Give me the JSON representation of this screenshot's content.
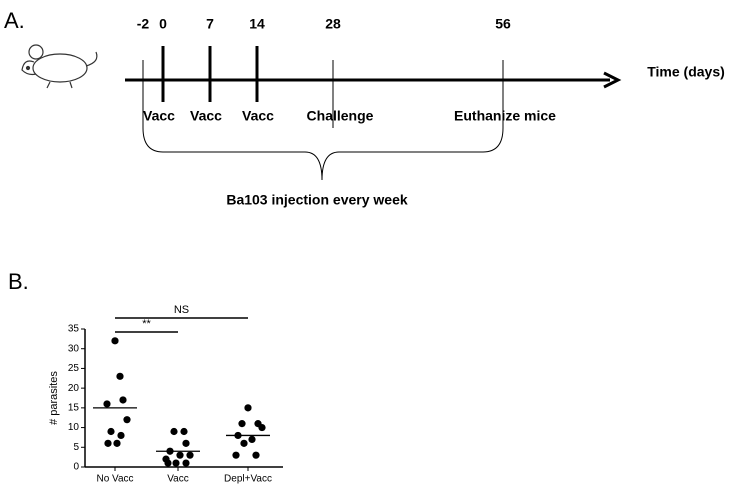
{
  "panel_a": {
    "label": "A.",
    "days": [
      -2,
      0,
      7,
      14,
      28,
      56
    ],
    "events": [
      "Vacc",
      "Vacc",
      "Vacc",
      "Challenge",
      "Euthanize mice"
    ],
    "axis_label": "Time (days)",
    "brace_label": "Ba103 injection every week"
  },
  "panel_b": {
    "label": "B."
  },
  "chart_data": {
    "type": "dot",
    "y_label": "# parasites",
    "categories": [
      "No Vacc",
      "Vacc",
      "Depl+Vacc"
    ],
    "values": [
      [
        32,
        23,
        17,
        16,
        12,
        9,
        8,
        6,
        6
      ],
      [
        9,
        9,
        6,
        4,
        3,
        3,
        2,
        1,
        1,
        1
      ],
      [
        15,
        11,
        11,
        10,
        8,
        7,
        6,
        3,
        3
      ]
    ],
    "center_lines": [
      15,
      4,
      8
    ],
    "annotations": [
      "**",
      "NS"
    ],
    "color": "#000000",
    "ylim": [
      0,
      35
    ],
    "yticks": [
      0,
      5,
      10,
      15,
      20,
      25,
      30,
      35
    ]
  }
}
